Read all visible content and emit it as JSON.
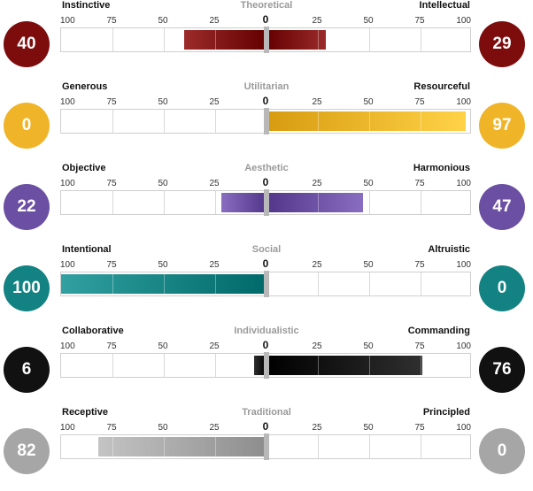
{
  "chart_data": {
    "type": "bar",
    "axis": {
      "ticks": [
        "100",
        "75",
        "50",
        "25",
        "0",
        "25",
        "50",
        "75",
        "100"
      ],
      "range": [
        -100,
        100
      ]
    },
    "scales": [
      {
        "name": "Theoretical",
        "left_label": "Instinctive",
        "right_label": "Intellectual",
        "left_value": 40,
        "right_value": 29,
        "color": "#7d0d0d"
      },
      {
        "name": "Utilitarian",
        "left_label": "Generous",
        "right_label": "Resourceful",
        "left_value": 0,
        "right_value": 97,
        "color": "#f0b429"
      },
      {
        "name": "Aesthetic",
        "left_label": "Objective",
        "right_label": "Harmonious",
        "left_value": 22,
        "right_value": 47,
        "color": "#6b4fa2"
      },
      {
        "name": "Social",
        "left_label": "Intentional",
        "right_label": "Altruistic",
        "left_value": 100,
        "right_value": 0,
        "color": "#138282"
      },
      {
        "name": "Individualistic",
        "left_label": "Collaborative",
        "right_label": "Commanding",
        "left_value": 6,
        "right_value": 76,
        "color": "#111111"
      },
      {
        "name": "Traditional",
        "left_label": "Receptive",
        "right_label": "Principled",
        "left_value": 82,
        "right_value": 0,
        "color": "#a6a6a6"
      }
    ]
  }
}
